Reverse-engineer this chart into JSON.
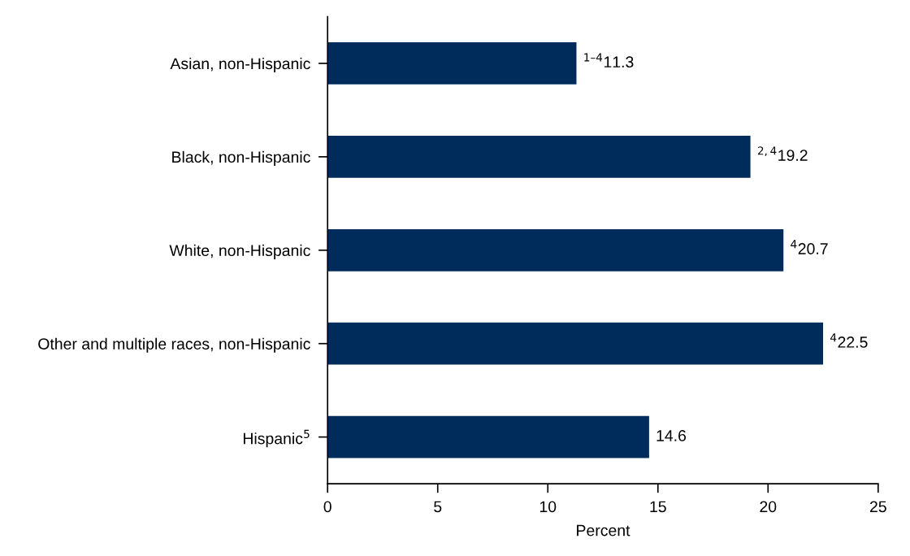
{
  "chart_data": {
    "type": "bar",
    "orientation": "horizontal",
    "xlabel": "Percent",
    "categories": [
      "Asian, non-Hispanic",
      "Black, non-Hispanic",
      "White, non-Hispanic",
      "Other and multiple races, non-Hispanic",
      "Hispanic$^{5}$"
    ],
    "values": [
      11.3,
      19.2,
      20.7,
      22.5,
      14.6
    ],
    "value_labels": [
      "$^{1–4}$11.3",
      "$^{2,4}$19.2",
      "$^{4}$20.7",
      "$^{4}$22.5",
      "14.6"
    ],
    "color": "#002c5c",
    "xlim": [
      0,
      25
    ],
    "xticks": [
      0,
      5,
      10,
      15,
      20,
      25
    ],
    "grid": false
  }
}
